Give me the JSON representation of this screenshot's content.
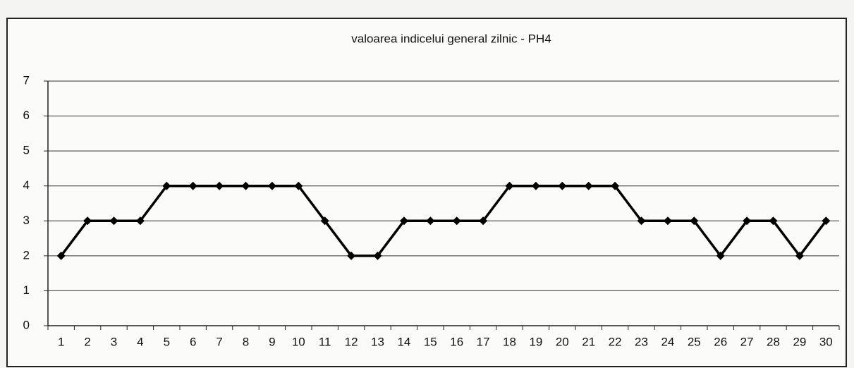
{
  "chart_data": {
    "type": "line",
    "title": "valoarea indicelui general zilnic - PH4",
    "categories": [
      "1",
      "2",
      "3",
      "4",
      "5",
      "6",
      "7",
      "8",
      "9",
      "10",
      "11",
      "12",
      "13",
      "14",
      "15",
      "16",
      "17",
      "18",
      "19",
      "20",
      "21",
      "22",
      "23",
      "24",
      "25",
      "26",
      "27",
      "28",
      "29",
      "30"
    ],
    "series": [
      {
        "name": "PH4",
        "color": "#000000",
        "values": [
          2,
          3,
          3,
          3,
          4,
          4,
          4,
          4,
          4,
          4,
          3,
          2,
          2,
          3,
          3,
          3,
          3,
          4,
          4,
          4,
          4,
          4,
          3,
          3,
          3,
          2,
          3,
          3,
          2,
          3
        ]
      }
    ],
    "ylim": [
      0,
      7
    ],
    "yticks": [
      0,
      1,
      2,
      3,
      4,
      5,
      6,
      7
    ],
    "grid": true
  }
}
